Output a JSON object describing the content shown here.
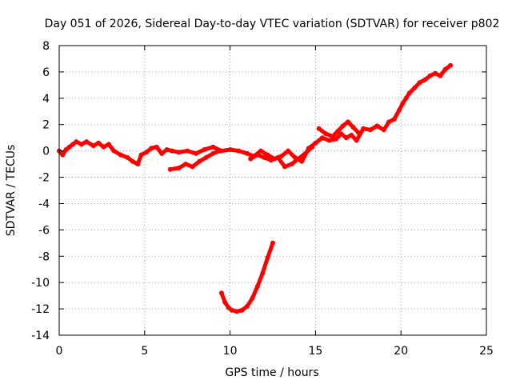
{
  "chart_data": {
    "type": "scatter",
    "title": "Day 051 of 2026, Sidereal Day-to-day VTEC variation (SDTVAR) for receiver p802",
    "xlabel": "GPS time / hours",
    "ylabel": "SDTVAR / TECUs",
    "xlim": [
      0,
      25
    ],
    "ylim": [
      -14,
      8
    ],
    "xticks": [
      0,
      5,
      10,
      15,
      20,
      25
    ],
    "yticks": [
      -14,
      -12,
      -10,
      -8,
      -6,
      -4,
      -2,
      0,
      2,
      4,
      6,
      8
    ],
    "grid": true,
    "series_color": "#ff0000",
    "series": [
      {
        "name": "main-track",
        "points": [
          [
            0.0,
            0.0
          ],
          [
            0.2,
            -0.3
          ],
          [
            0.4,
            0.1
          ],
          [
            0.6,
            0.3
          ],
          [
            0.8,
            0.5
          ],
          [
            1.0,
            0.7
          ],
          [
            1.3,
            0.5
          ],
          [
            1.6,
            0.7
          ],
          [
            2.0,
            0.4
          ],
          [
            2.3,
            0.6
          ],
          [
            2.6,
            0.3
          ],
          [
            2.9,
            0.5
          ],
          [
            3.2,
            0.0
          ],
          [
            3.6,
            -0.3
          ],
          [
            4.0,
            -0.5
          ],
          [
            4.3,
            -0.8
          ],
          [
            4.6,
            -1.0
          ],
          [
            4.8,
            -0.3
          ],
          [
            5.1,
            -0.1
          ],
          [
            5.4,
            0.2
          ],
          [
            5.7,
            0.3
          ],
          [
            6.0,
            -0.2
          ],
          [
            6.3,
            0.1
          ],
          [
            6.6,
            0.0
          ],
          [
            7.0,
            -0.1
          ],
          [
            7.5,
            0.0
          ],
          [
            8.0,
            -0.2
          ],
          [
            8.5,
            0.1
          ],
          [
            9.0,
            0.3
          ],
          [
            9.5,
            0.0
          ],
          [
            10.0,
            0.1
          ],
          [
            10.5,
            0.0
          ],
          [
            11.0,
            -0.2
          ],
          [
            11.4,
            -0.4
          ],
          [
            11.8,
            0.0
          ],
          [
            12.2,
            -0.3
          ],
          [
            12.6,
            -0.6
          ],
          [
            13.0,
            -0.4
          ],
          [
            13.4,
            0.0
          ],
          [
            13.8,
            -0.5
          ],
          [
            14.2,
            -0.8
          ],
          [
            14.6,
            0.2
          ],
          [
            15.0,
            0.6
          ],
          [
            15.4,
            1.0
          ],
          [
            15.8,
            0.8
          ],
          [
            16.2,
            0.9
          ],
          [
            16.5,
            1.3
          ],
          [
            16.8,
            1.0
          ],
          [
            17.1,
            1.2
          ],
          [
            17.4,
            0.8
          ],
          [
            17.8,
            1.7
          ],
          [
            18.2,
            1.6
          ],
          [
            18.6,
            1.9
          ],
          [
            19.0,
            1.6
          ],
          [
            19.3,
            2.2
          ],
          [
            19.6,
            2.4
          ],
          [
            19.9,
            3.1
          ],
          [
            20.1,
            3.6
          ],
          [
            20.3,
            4.0
          ],
          [
            20.5,
            4.4
          ],
          [
            20.8,
            4.8
          ],
          [
            21.1,
            5.2
          ],
          [
            21.4,
            5.4
          ],
          [
            21.7,
            5.7
          ],
          [
            22.0,
            5.9
          ],
          [
            22.3,
            5.7
          ],
          [
            22.6,
            6.2
          ],
          [
            22.9,
            6.5
          ]
        ]
      },
      {
        "name": "lower-branch",
        "points": [
          [
            6.5,
            -1.4
          ],
          [
            7.0,
            -1.3
          ],
          [
            7.4,
            -1.0
          ],
          [
            7.8,
            -1.2
          ],
          [
            8.2,
            -0.8
          ],
          [
            8.6,
            -0.5
          ],
          [
            9.0,
            -0.2
          ],
          [
            9.4,
            0.0
          ]
        ]
      },
      {
        "name": "mid-branch",
        "points": [
          [
            11.2,
            -0.6
          ],
          [
            11.6,
            -0.3
          ],
          [
            12.0,
            -0.5
          ],
          [
            12.4,
            -0.7
          ],
          [
            12.8,
            -0.5
          ],
          [
            13.2,
            -1.2
          ],
          [
            13.6,
            -1.0
          ],
          [
            14.0,
            -0.6
          ],
          [
            14.4,
            -0.2
          ],
          [
            14.8,
            0.3
          ]
        ]
      },
      {
        "name": "upper-branch",
        "points": [
          [
            15.2,
            1.7
          ],
          [
            15.6,
            1.3
          ],
          [
            16.0,
            1.1
          ],
          [
            16.3,
            1.5
          ],
          [
            16.6,
            1.9
          ],
          [
            16.9,
            2.2
          ],
          [
            17.2,
            1.8
          ],
          [
            17.5,
            1.4
          ]
        ]
      },
      {
        "name": "dip-segment",
        "points": [
          [
            9.5,
            -10.8
          ],
          [
            9.7,
            -11.5
          ],
          [
            9.9,
            -11.9
          ],
          [
            10.1,
            -12.1
          ],
          [
            10.4,
            -12.2
          ],
          [
            10.7,
            -12.1
          ],
          [
            11.0,
            -11.8
          ],
          [
            11.3,
            -11.2
          ],
          [
            11.6,
            -10.3
          ],
          [
            11.9,
            -9.3
          ],
          [
            12.2,
            -8.1
          ],
          [
            12.5,
            -7.0
          ]
        ]
      }
    ]
  }
}
